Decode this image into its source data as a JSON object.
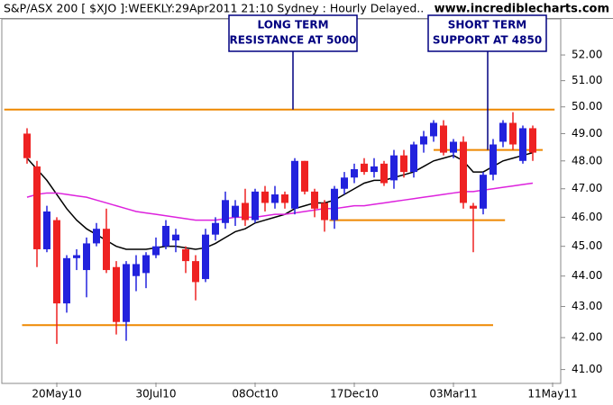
{
  "chart_data": {
    "type": "candlestick",
    "title": "S&P/ASX 200 [ $XJO ]:WEEKLY:29Apr2011 21:10 Sydney : Hourly Delayed..",
    "watermark": "www.incrediblecharts.com",
    "categories": [
      null,
      null,
      null,
      "20May10",
      null,
      null,
      null,
      null,
      null,
      null,
      null,
      null,
      null,
      "30Jul10",
      null,
      null,
      null,
      null,
      null,
      null,
      null,
      null,
      null,
      "08Oct10",
      null,
      null,
      null,
      null,
      null,
      null,
      null,
      null,
      null,
      "17Dec10",
      null,
      null,
      null,
      null,
      null,
      null,
      null,
      null,
      null,
      "03Mar11",
      null,
      null,
      null,
      null,
      null,
      null,
      null,
      null,
      null,
      "11May11"
    ],
    "open": [
      49.0,
      47.8,
      44.9,
      45.9,
      43.1,
      44.6,
      44.2,
      45.1,
      45.6,
      44.3,
      42.5,
      44.0,
      44.1,
      44.7,
      45.0,
      45.2,
      44.9,
      44.5,
      43.9,
      45.4,
      45.8,
      46.0,
      46.5,
      45.9,
      46.9,
      46.5,
      46.8,
      46.3,
      48.0,
      46.9,
      46.5,
      45.9,
      47.0,
      47.4,
      47.9,
      47.6,
      47.9,
      47.3,
      48.2,
      47.6,
      48.6,
      48.9,
      49.3,
      48.3,
      48.7,
      46.4,
      46.3,
      47.5,
      48.7,
      49.4,
      48.0,
      49.2,
      null,
      null
    ],
    "high": [
      49.2,
      48.0,
      46.4,
      46.0,
      44.7,
      44.9,
      45.3,
      45.8,
      46.3,
      44.5,
      44.5,
      44.7,
      44.8,
      45.3,
      45.9,
      45.6,
      45.0,
      44.7,
      45.6,
      46.0,
      46.9,
      46.6,
      47.0,
      47.0,
      47.1,
      47.1,
      46.9,
      48.1,
      48.0,
      47.0,
      46.6,
      47.1,
      47.6,
      47.9,
      48.1,
      48.1,
      48.0,
      48.4,
      48.4,
      48.7,
      49.1,
      49.5,
      49.5,
      48.8,
      48.9,
      46.5,
      47.6,
      48.8,
      49.5,
      49.8,
      49.3,
      49.3,
      null,
      null
    ],
    "low": [
      47.9,
      44.3,
      44.8,
      41.8,
      42.8,
      44.2,
      43.3,
      45.0,
      44.1,
      42.1,
      41.9,
      43.5,
      43.6,
      44.6,
      44.9,
      44.8,
      44.1,
      43.2,
      43.8,
      45.2,
      45.6,
      45.7,
      45.7,
      45.8,
      46.2,
      46.3,
      46.3,
      46.1,
      46.8,
      46.0,
      45.5,
      45.6,
      46.8,
      47.2,
      47.5,
      47.4,
      47.1,
      47.0,
      47.4,
      47.4,
      48.3,
      48.7,
      48.2,
      48.1,
      46.3,
      44.8,
      46.1,
      47.3,
      48.5,
      48.4,
      47.9,
      48.0,
      null,
      null
    ],
    "close": [
      48.1,
      44.9,
      46.2,
      43.1,
      44.6,
      44.7,
      45.1,
      45.6,
      44.2,
      42.5,
      44.4,
      44.4,
      44.7,
      45.0,
      45.7,
      45.4,
      44.5,
      43.8,
      45.4,
      45.8,
      46.6,
      46.4,
      45.9,
      46.9,
      46.5,
      46.8,
      46.5,
      48.0,
      46.9,
      46.3,
      45.9,
      47.0,
      47.4,
      47.7,
      47.6,
      47.8,
      47.2,
      48.2,
      47.6,
      48.6,
      48.9,
      49.4,
      48.3,
      48.7,
      46.5,
      46.3,
      47.5,
      48.6,
      49.4,
      48.6,
      49.2,
      48.3,
      null,
      null
    ],
    "up_color": "#2222dd",
    "down_color": "#ee2222",
    "lines": [
      {
        "color": "#000000",
        "values": [
          48.1,
          47.7,
          47.3,
          46.8,
          46.3,
          45.9,
          45.6,
          45.4,
          45.2,
          45.0,
          44.9,
          44.9,
          44.9,
          44.95,
          45.0,
          45.0,
          44.95,
          44.9,
          44.95,
          45.1,
          45.3,
          45.5,
          45.6,
          45.8,
          45.9,
          46.0,
          46.1,
          46.3,
          46.4,
          46.5,
          46.5,
          46.6,
          46.8,
          47.0,
          47.2,
          47.3,
          47.3,
          47.4,
          47.5,
          47.6,
          47.8,
          48.0,
          48.1,
          48.2,
          48.0,
          47.6,
          47.6,
          47.8,
          48.0,
          48.1,
          48.2,
          48.3,
          null,
          null
        ]
      },
      {
        "color": "#dd22dd",
        "values": [
          46.7,
          46.8,
          46.85,
          46.85,
          46.8,
          46.75,
          46.7,
          46.6,
          46.5,
          46.4,
          46.3,
          46.2,
          46.15,
          46.1,
          46.05,
          46.0,
          45.95,
          45.9,
          45.9,
          45.9,
          45.95,
          46.0,
          46.0,
          46.0,
          46.05,
          46.1,
          46.1,
          46.15,
          46.2,
          46.25,
          46.3,
          46.3,
          46.35,
          46.4,
          46.4,
          46.45,
          46.5,
          46.55,
          46.6,
          46.65,
          46.7,
          46.75,
          46.8,
          46.85,
          46.9,
          46.9,
          46.95,
          47.0,
          47.05,
          47.1,
          47.15,
          47.2,
          null,
          null
        ]
      }
    ],
    "hlines": [
      {
        "value": 49.9,
        "color": "#ee8800"
      },
      {
        "value": 45.9,
        "color": "#ee8800"
      },
      {
        "value": 48.4,
        "color": "#ee8800"
      },
      {
        "value": 42.4,
        "color": "#ee8800"
      }
    ],
    "annotations": [
      {
        "text": [
          "LONG TERM",
          "RESISTANCE AT 5000"
        ]
      },
      {
        "text": [
          "SHORT TERM",
          "SUPPORT AT 4850"
        ]
      }
    ],
    "log_scale": true,
    "ylim": [
      40.6,
      53.4
    ],
    "yticks": [
      {
        "value": 41,
        "label": "41.00"
      },
      {
        "value": 42,
        "label": "42.00"
      },
      {
        "value": 43,
        "label": "43.00"
      },
      {
        "value": 44,
        "label": "44.00"
      },
      {
        "value": 45,
        "label": "45.00"
      },
      {
        "value": 46,
        "label": "46.00"
      },
      {
        "value": 47,
        "label": "47.00"
      },
      {
        "value": 48,
        "label": "48.00"
      },
      {
        "value": 49,
        "label": "49.00"
      },
      {
        "value": 50,
        "label": "50.00"
      },
      {
        "value": 51,
        "label": "51.00"
      },
      {
        "value": 52,
        "label": "52.00"
      }
    ]
  }
}
